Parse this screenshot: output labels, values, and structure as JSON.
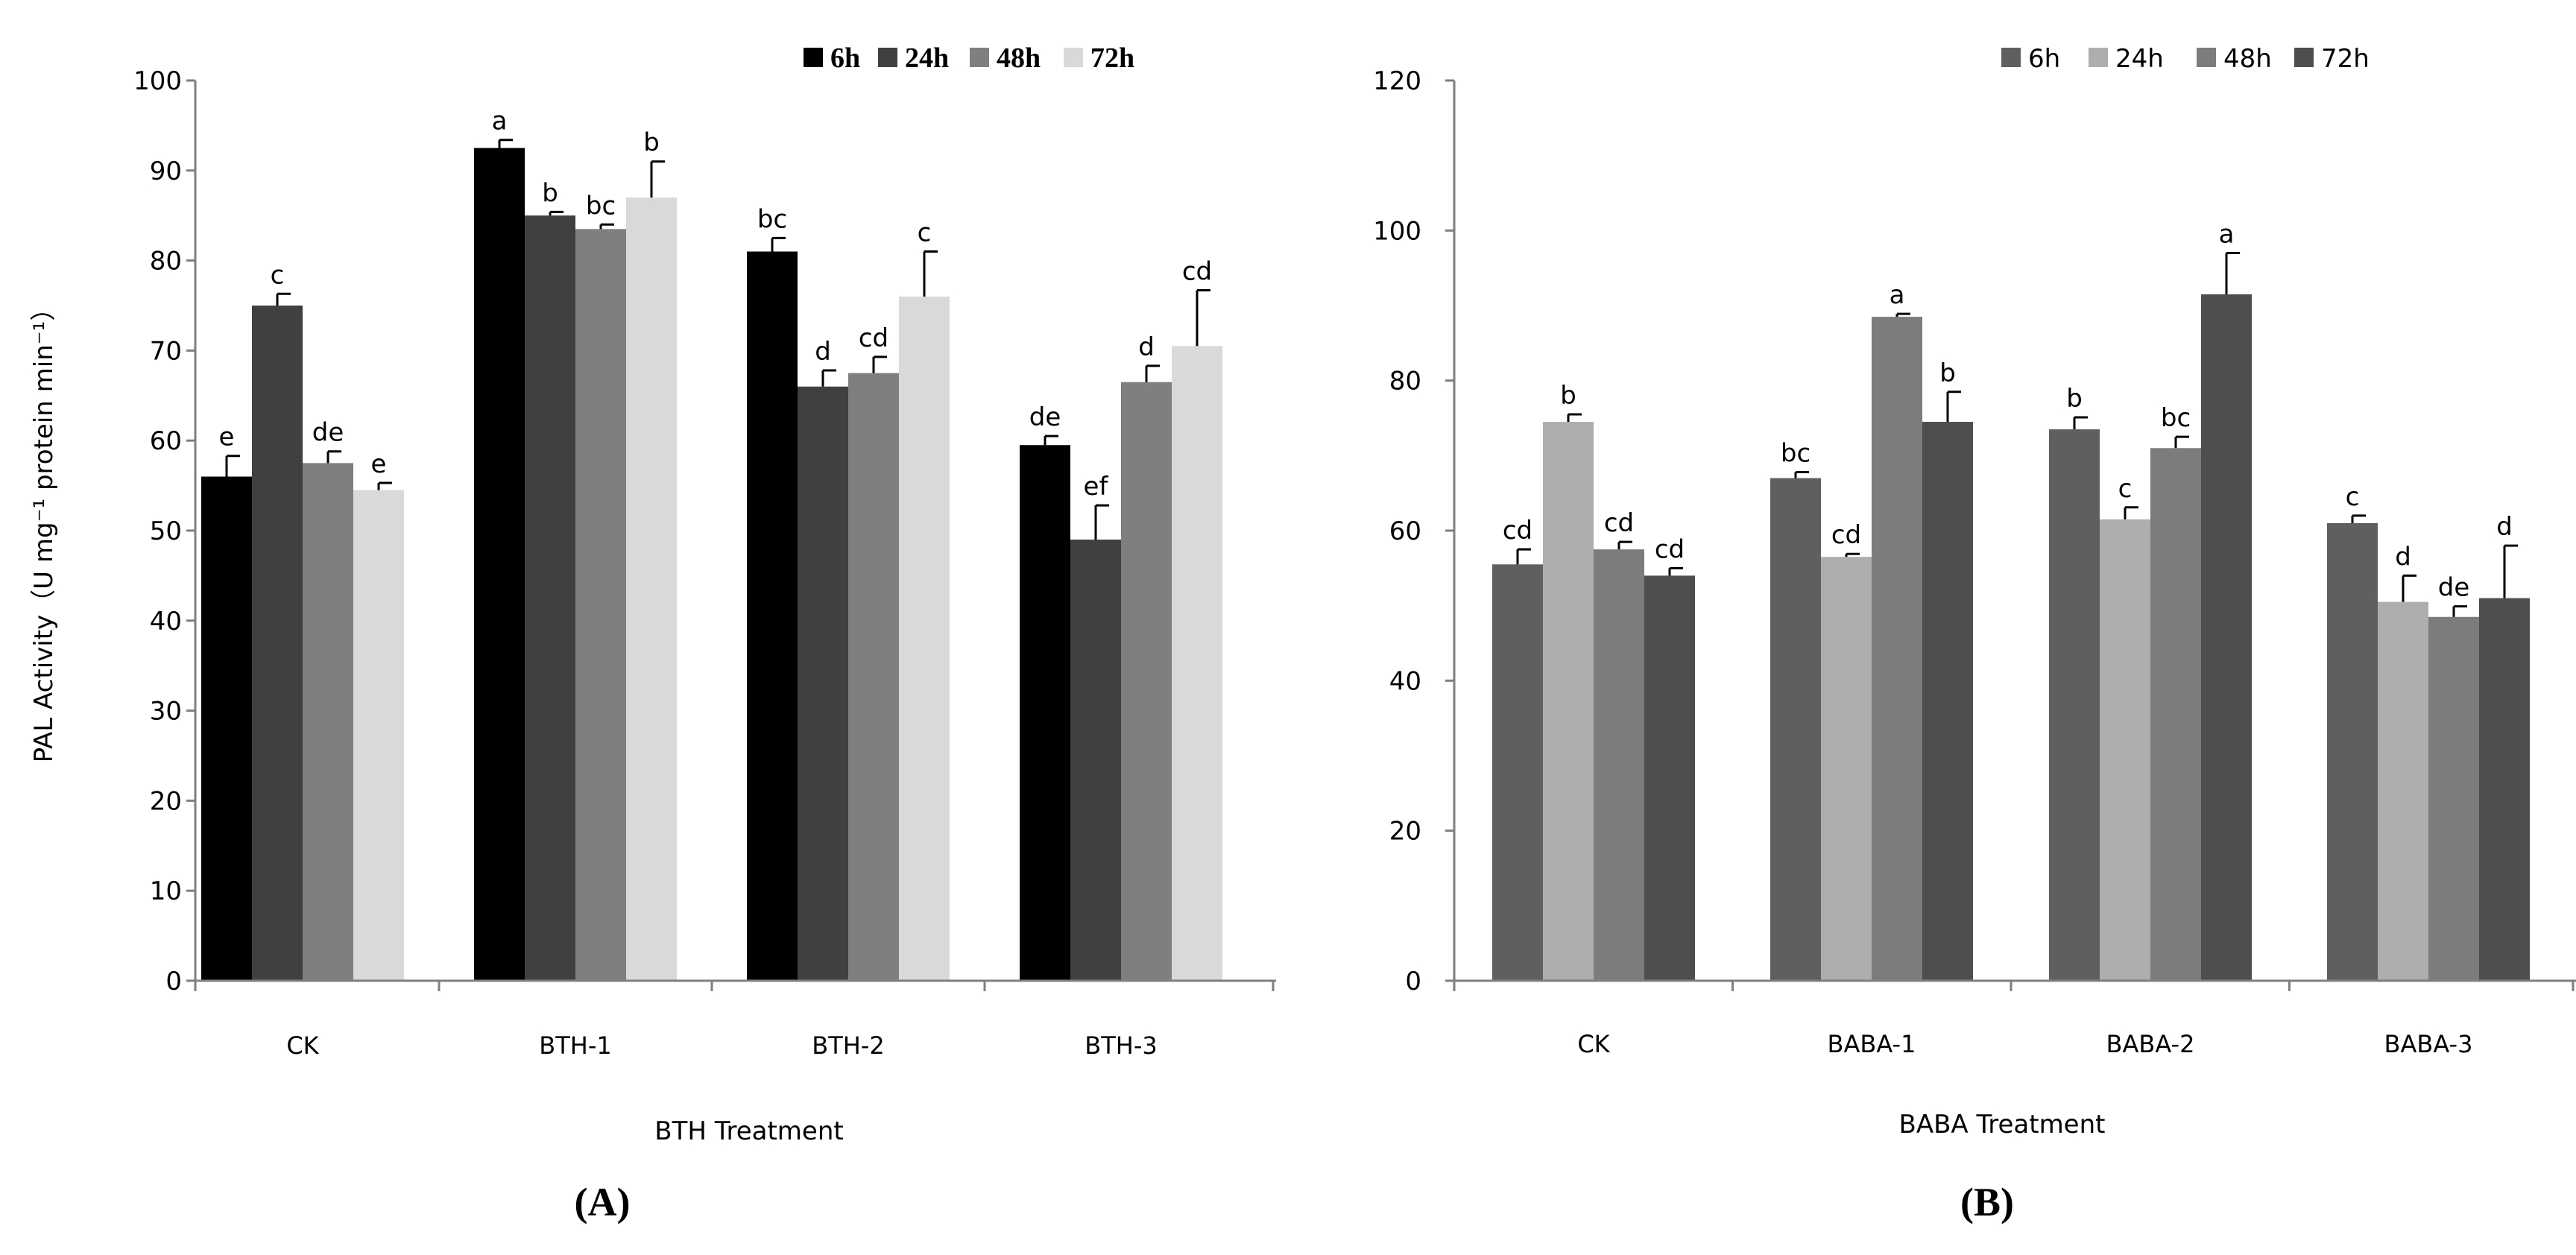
{
  "chart_data": [
    {
      "panel_label": "(A)",
      "type": "bar",
      "xlabel": "BTH Treatment",
      "ylabel": "PAL Activity（U mg⁻¹ protein min⁻¹）",
      "ylim": [
        0,
        100
      ],
      "yticks": [
        "0",
        "10",
        "20",
        "30",
        "40",
        "50",
        "60",
        "70",
        "80",
        "90",
        "100"
      ],
      "categories": [
        "CK",
        "BTH-1",
        "BTH-2",
        "BTH-3"
      ],
      "legend_position": "top-right",
      "series": [
        {
          "name": "6h",
          "color": "#000000",
          "values": [
            56,
            92.5,
            81,
            59.5
          ],
          "errors": [
            2.3,
            0.9,
            1.5,
            1.0
          ],
          "letters": [
            "e",
            "a",
            "bc",
            "de"
          ]
        },
        {
          "name": "24h",
          "color": "#404040",
          "values": [
            75,
            85,
            66,
            49
          ],
          "errors": [
            1.3,
            0.4,
            1.8,
            3.8
          ],
          "letters": [
            "c",
            "b",
            "d",
            "ef"
          ]
        },
        {
          "name": "48h",
          "color": "#7f7f7f",
          "values": [
            57.5,
            83.5,
            67.5,
            66.5
          ],
          "errors": [
            1.3,
            0.5,
            1.8,
            1.8
          ],
          "letters": [
            "de",
            "bc",
            "cd",
            "d"
          ]
        },
        {
          "name": "72h",
          "color": "#d9d9d9",
          "values": [
            54.5,
            87,
            76,
            70.5
          ],
          "errors": [
            0.8,
            4.0,
            5.0,
            6.2
          ],
          "letters": [
            "e",
            "b",
            "c",
            "cd"
          ]
        }
      ]
    },
    {
      "panel_label": "(B)",
      "type": "bar",
      "xlabel": "BABA  Treatment",
      "ylabel": "",
      "ylim": [
        0,
        120
      ],
      "yticks": [
        "0",
        "20",
        "40",
        "60",
        "80",
        "100",
        "120"
      ],
      "categories": [
        "CK",
        "BABA-1",
        "BABA-2",
        "BABA-3"
      ],
      "legend_position": "top-right",
      "series": [
        {
          "name": "6h",
          "color": "#5f5f5f",
          "values": [
            55.5,
            67,
            73.5,
            61
          ],
          "errors": [
            2.0,
            0.8,
            1.6,
            1.0
          ],
          "letters": [
            "cd",
            "bc",
            "b",
            "c"
          ]
        },
        {
          "name": "24h",
          "color": "#aeaeae",
          "values": [
            74.5,
            56.5,
            61.5,
            50.5
          ],
          "errors": [
            1.0,
            0.4,
            1.6,
            3.5
          ],
          "letters": [
            "b",
            "cd",
            "c",
            "d"
          ]
        },
        {
          "name": "48h",
          "color": "#7c7c7c",
          "values": [
            57.5,
            88.5,
            71,
            48.5
          ],
          "errors": [
            1.0,
            0.4,
            1.5,
            1.4
          ],
          "letters": [
            "cd",
            "a",
            "bc",
            "de"
          ]
        },
        {
          "name": "72h",
          "color": "#4e4e4e",
          "values": [
            54,
            74.5,
            91.5,
            51
          ],
          "errors": [
            1.0,
            4.0,
            5.5,
            7.0
          ],
          "letters": [
            "cd",
            "b",
            "a",
            "d"
          ]
        }
      ]
    }
  ]
}
